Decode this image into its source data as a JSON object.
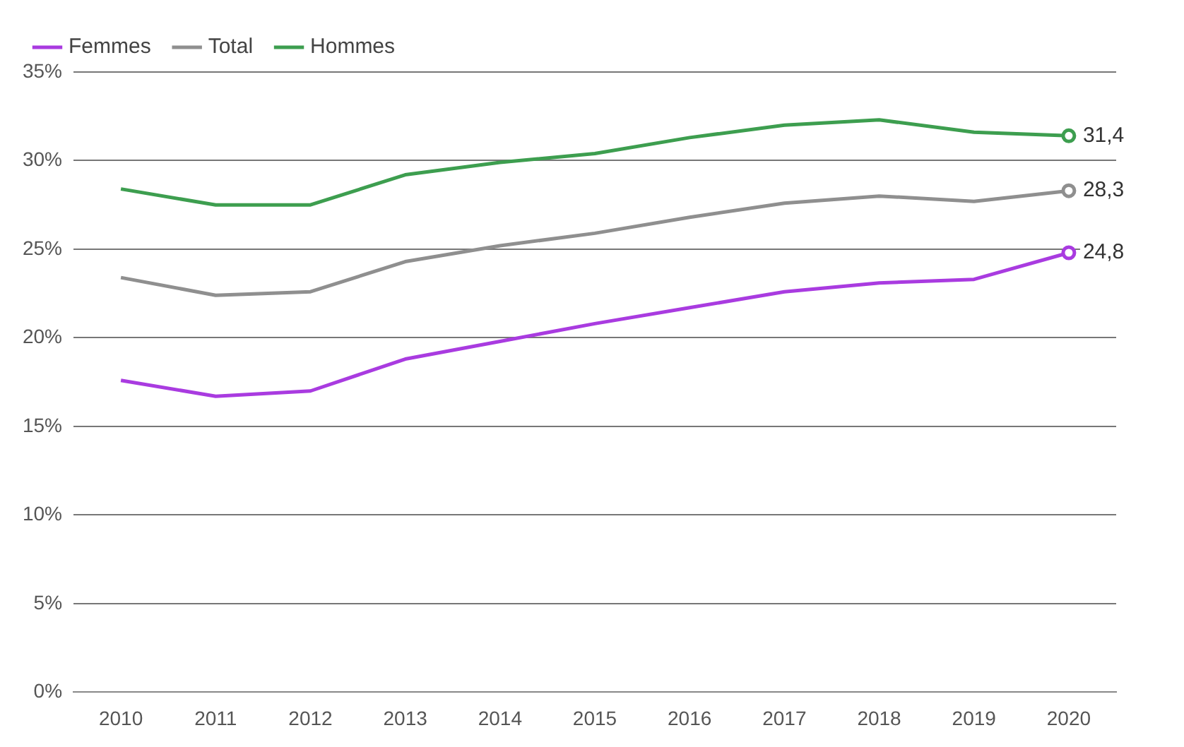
{
  "chart_data": {
    "type": "line",
    "categories": [
      "2010",
      "2011",
      "2012",
      "2013",
      "2014",
      "2015",
      "2016",
      "2017",
      "2018",
      "2019",
      "2020"
    ],
    "series": [
      {
        "name": "Femmes",
        "color": "#a93be0",
        "values": [
          17.6,
          16.7,
          17.0,
          18.8,
          19.8,
          20.8,
          21.7,
          22.6,
          23.1,
          23.3,
          24.8
        ],
        "value_labels": [
          null,
          null,
          null,
          null,
          null,
          null,
          null,
          null,
          null,
          null,
          "24,8"
        ]
      },
      {
        "name": "Total",
        "color": "#8f8f8f",
        "values": [
          23.4,
          22.4,
          22.6,
          24.3,
          25.2,
          25.9,
          26.8,
          27.6,
          28.0,
          27.7,
          28.3
        ],
        "value_labels": [
          null,
          null,
          null,
          null,
          null,
          null,
          null,
          null,
          null,
          null,
          "28,3"
        ]
      },
      {
        "name": "Hommes",
        "color": "#3d9e4f",
        "values": [
          28.4,
          27.5,
          27.5,
          29.2,
          29.9,
          30.4,
          31.3,
          32.0,
          32.3,
          31.6,
          31.4
        ],
        "value_labels": [
          null,
          null,
          null,
          null,
          null,
          null,
          null,
          null,
          null,
          null,
          "31,4"
        ]
      }
    ],
    "ylim": [
      0,
      35
    ],
    "yticks": [
      {
        "value": 0,
        "label": "0%"
      },
      {
        "value": 5,
        "label": "5%"
      },
      {
        "value": 10,
        "label": "10%"
      },
      {
        "value": 15,
        "label": "15%"
      },
      {
        "value": 20,
        "label": "20%"
      },
      {
        "value": 25,
        "label": "25%"
      },
      {
        "value": 30,
        "label": "30%"
      },
      {
        "value": 35,
        "label": "35%"
      }
    ],
    "grid": "y",
    "legend": "top left",
    "line_style": "solid"
  }
}
